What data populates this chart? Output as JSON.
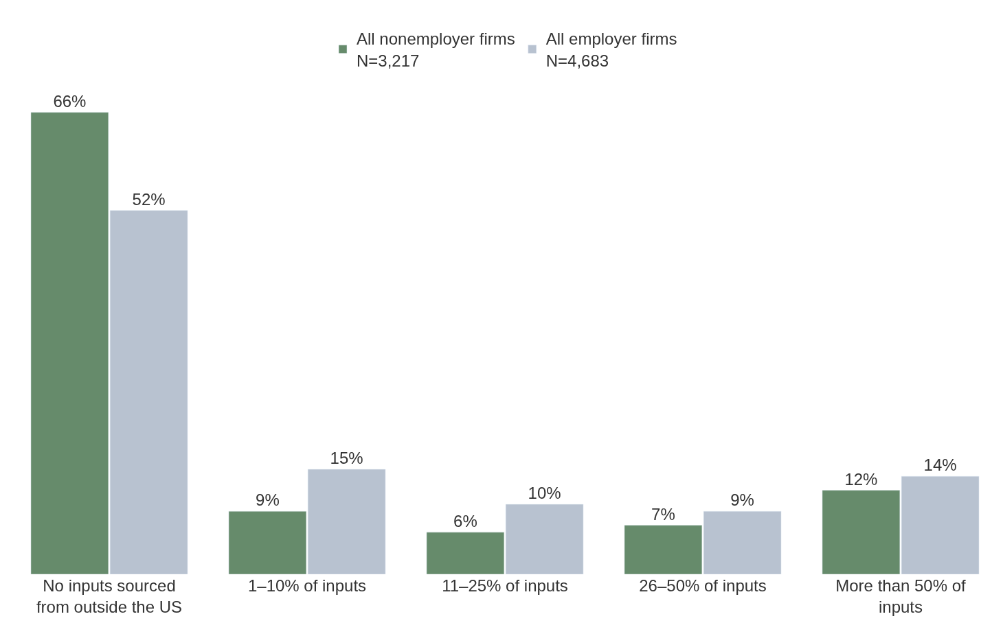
{
  "chart_data": {
    "type": "bar",
    "categories": [
      "No inputs sourced from outside the US",
      "1–10% of inputs",
      "11–25% of inputs",
      "26–50% of inputs",
      "More than 50% of inputs"
    ],
    "series": [
      {
        "name": "All nonemployer firms\nN=3,217",
        "color": "#668b6b",
        "values": [
          66,
          9,
          6,
          7,
          12
        ],
        "value_labels": [
          "66%",
          "9%",
          "6%",
          "7%",
          "12%"
        ]
      },
      {
        "name": "All employer firms\nN=4,683",
        "color": "#b8c2d0",
        "values": [
          52,
          15,
          10,
          9,
          14
        ],
        "value_labels": [
          "52%",
          "15%",
          "10%",
          "9%",
          "14%"
        ]
      }
    ],
    "legend": "top"
  }
}
